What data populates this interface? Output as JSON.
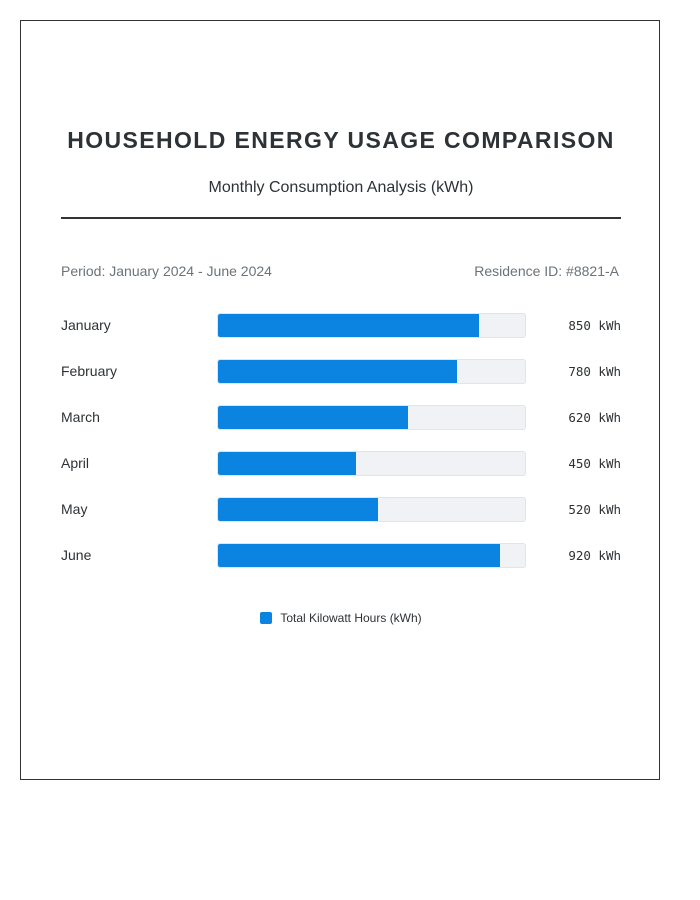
{
  "header": {
    "title": "HOUSEHOLD ENERGY USAGE COMPARISON",
    "subtitle": "Monthly Consumption Analysis (kWh)"
  },
  "meta": {
    "period": "Period: January 2024 - June 2024",
    "residence": "Residence ID: #8821-A"
  },
  "colors": {
    "bar": "#0a84e0",
    "track": "#f0f2f5"
  },
  "chart_data": {
    "type": "bar",
    "orientation": "horizontal",
    "categories": [
      "January",
      "February",
      "March",
      "April",
      "May",
      "June"
    ],
    "values": [
      850,
      780,
      620,
      450,
      520,
      920
    ],
    "value_labels": [
      "850 kWh",
      "780 kWh",
      "620 kWh",
      "450 kWh",
      "520 kWh",
      "920 kWh"
    ],
    "unit": "kWh",
    "xlim": [
      0,
      1000
    ],
    "title": "HOUSEHOLD ENERGY USAGE COMPARISON",
    "subtitle": "Monthly Consumption Analysis (kWh)",
    "legend": {
      "entries": [
        "Total Kilowatt Hours (kWh)"
      ],
      "placement": "bottom"
    },
    "grid": false
  }
}
